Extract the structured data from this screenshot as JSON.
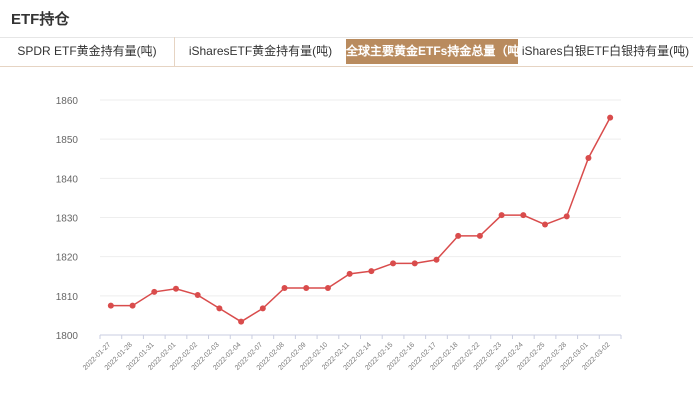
{
  "header": {
    "title": "ETF持仓"
  },
  "tabs": [
    {
      "label": "SPDR ETF黄金持有量(吨)",
      "active": false
    },
    {
      "label": "iSharesETF黄金持有量(吨)",
      "active": false
    },
    {
      "label": "全球主要黄金ETFs持金总量（吨）",
      "active": true
    },
    {
      "label": "iShares白银ETF白银持有量(吨)",
      "active": false
    }
  ],
  "colors": {
    "accent": "#b98b5e",
    "line": "#d94c4c",
    "grid": "#eeeeee"
  },
  "chart_data": {
    "type": "line",
    "categories": [
      "2022-01-27",
      "2022-01-28",
      "2022-01-31",
      "2022-02-01",
      "2022-02-02",
      "2022-02-03",
      "2022-02-04",
      "2022-02-07",
      "2022-02-08",
      "2022-02-09",
      "2022-02-10",
      "2022-02-11",
      "2022-02-14",
      "2022-02-15",
      "2022-02-16",
      "2022-02-17",
      "2022-02-18",
      "2022-02-22",
      "2022-02-23",
      "2022-02-24",
      "2022-02-25",
      "2022-02-28",
      "2022-03-01",
      "2022-03-02"
    ],
    "series": [
      {
        "values": [
          1807.5,
          1807.5,
          1811.0,
          1811.8,
          1810.2,
          1806.8,
          1803.4,
          1806.8,
          1812.0,
          1812.0,
          1812.0,
          1815.6,
          1816.3,
          1818.3,
          1818.3,
          1819.2,
          1825.3,
          1825.3,
          1830.6,
          1830.6,
          1828.2,
          1830.3,
          1845.2,
          1855.5
        ]
      }
    ],
    "yticks": [
      1800,
      1810,
      1820,
      1830,
      1840,
      1850,
      1860
    ],
    "ylim": [
      1800,
      1860
    ],
    "grid": true,
    "legend": "none"
  }
}
